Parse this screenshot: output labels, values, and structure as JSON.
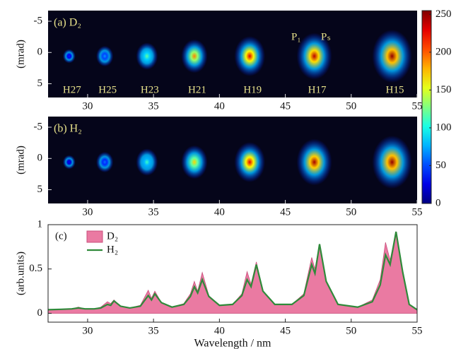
{
  "chart_data": [
    {
      "type": "heatmap",
      "title": "(a) D₂",
      "ylabel": "(mrad)",
      "x": [
        28.6,
        31.3,
        34.5,
        38.1,
        42.3,
        47.2,
        53.1
      ],
      "values": [
        40,
        70,
        120,
        190,
        230,
        240,
        250
      ],
      "labels": [
        "H27",
        "H25",
        "H23",
        "H21",
        "H19",
        "H17",
        "H15"
      ],
      "annotations": [
        "P₁",
        "Pₛ"
      ],
      "xlim": [
        27,
        55
      ],
      "xticks": [
        30,
        35,
        40,
        45,
        50,
        55
      ],
      "ylim": [
        -6.7,
        7.2
      ],
      "yticks": [
        -5,
        0,
        5
      ],
      "colorbar": {
        "lim": [
          0,
          255
        ],
        "ticks": [
          0,
          50,
          100,
          150,
          200,
          250
        ]
      }
    },
    {
      "type": "heatmap",
      "title": "(b) H₂",
      "ylabel": "(mrad)",
      "x": [
        28.6,
        31.3,
        34.5,
        38.1,
        42.3,
        47.2,
        53.1
      ],
      "values": [
        30,
        60,
        110,
        170,
        230,
        245,
        250
      ],
      "xlim": [
        27,
        55
      ],
      "xticks": [
        30,
        35,
        40,
        45,
        50,
        55
      ],
      "ylim": [
        -6.7,
        7.2
      ],
      "yticks": [
        -5,
        0,
        5
      ]
    },
    {
      "type": "area",
      "title": "(c)",
      "xlabel": "Wavelength / nm",
      "ylabel": "(arb.units)",
      "legend": "upper left",
      "x": [
        27,
        28,
        28.8,
        29.3,
        29.8,
        30.5,
        31.0,
        31.5,
        31.75,
        32.0,
        32.5,
        33.2,
        34.0,
        34.6,
        34.85,
        35.1,
        35.6,
        36.4,
        37.3,
        37.8,
        38.1,
        38.35,
        38.7,
        39.2,
        40.0,
        41.0,
        41.7,
        42.1,
        42.4,
        42.8,
        43.3,
        44.2,
        45.5,
        46.4,
        47.0,
        47.25,
        47.6,
        48.1,
        49.0,
        50.5,
        51.6,
        52.2,
        52.6,
        52.95,
        53.4,
        53.9,
        54.4,
        55
      ],
      "series": [
        {
          "name": "D₂",
          "style": "area",
          "color": "#ea7aa2",
          "values": [
            0.04,
            0.045,
            0.05,
            0.07,
            0.05,
            0.05,
            0.07,
            0.13,
            0.11,
            0.15,
            0.08,
            0.06,
            0.09,
            0.26,
            0.17,
            0.25,
            0.12,
            0.07,
            0.11,
            0.22,
            0.36,
            0.25,
            0.46,
            0.2,
            0.09,
            0.1,
            0.22,
            0.47,
            0.33,
            0.58,
            0.25,
            0.1,
            0.1,
            0.22,
            0.63,
            0.5,
            0.78,
            0.35,
            0.1,
            0.07,
            0.15,
            0.38,
            0.8,
            0.6,
            0.92,
            0.45,
            0.1,
            0.04
          ]
        },
        {
          "name": "H₂",
          "style": "line",
          "color": "#2f8a3a",
          "values": [
            0.04,
            0.045,
            0.05,
            0.06,
            0.05,
            0.05,
            0.06,
            0.1,
            0.09,
            0.14,
            0.08,
            0.06,
            0.08,
            0.2,
            0.15,
            0.22,
            0.12,
            0.07,
            0.1,
            0.19,
            0.3,
            0.23,
            0.38,
            0.19,
            0.09,
            0.1,
            0.2,
            0.38,
            0.3,
            0.55,
            0.25,
            0.1,
            0.1,
            0.2,
            0.55,
            0.45,
            0.78,
            0.36,
            0.1,
            0.07,
            0.13,
            0.32,
            0.66,
            0.55,
            0.92,
            0.47,
            0.1,
            0.04
          ]
        }
      ],
      "xlim": [
        27,
        55
      ],
      "xticks": [
        30,
        35,
        40,
        45,
        50,
        55
      ],
      "ylim": [
        -0.1,
        1
      ],
      "yticks": [
        0,
        0.5,
        1
      ]
    }
  ]
}
